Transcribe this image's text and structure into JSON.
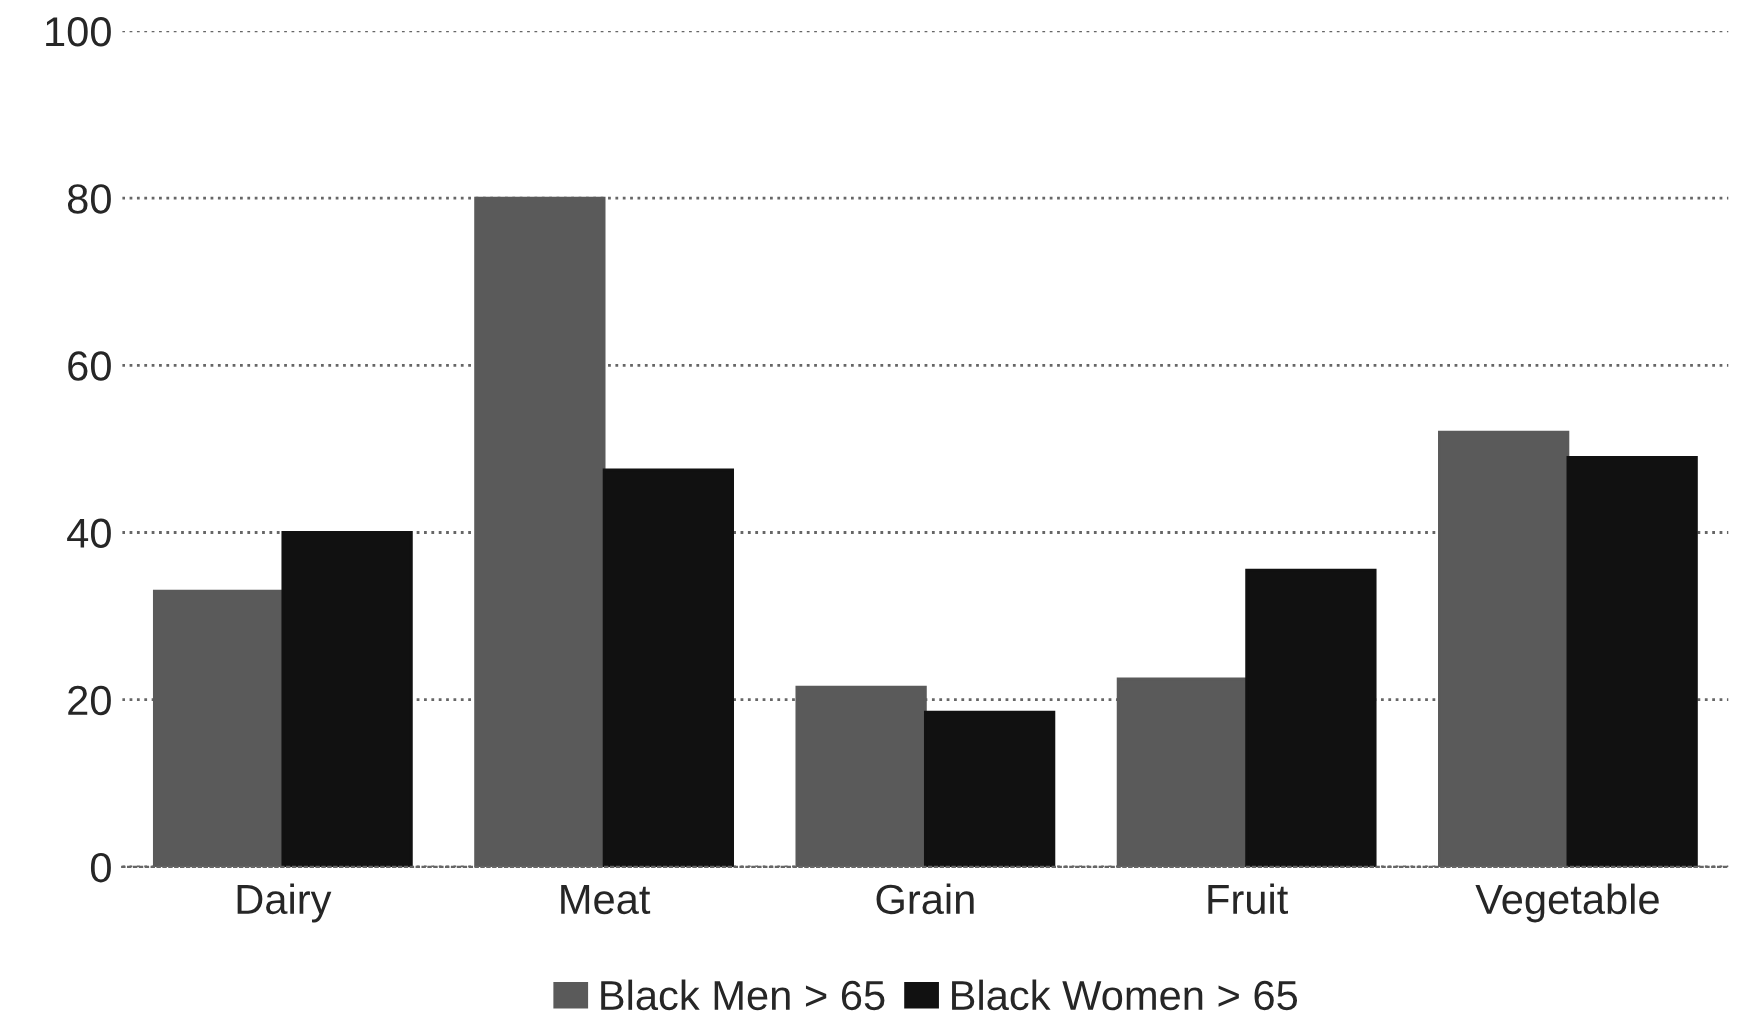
{
  "chart_data": {
    "type": "bar",
    "categories": [
      "Dairy",
      "Meat",
      "Grain",
      "Fruit",
      "Vegetable"
    ],
    "series": [
      {
        "name": "Black Men > 65",
        "color": "#5a5a5a",
        "values": [
          33,
          80,
          21.5,
          22.5,
          52
        ]
      },
      {
        "name": "Black Women > 65",
        "color": "#111111",
        "values": [
          40,
          47.5,
          18.5,
          35.5,
          49
        ]
      }
    ],
    "ylim": [
      0,
      100
    ],
    "yticks": [
      0,
      20,
      40,
      60,
      80,
      100
    ],
    "grid": "y",
    "line_style": "dotted",
    "legend": "bottom"
  }
}
